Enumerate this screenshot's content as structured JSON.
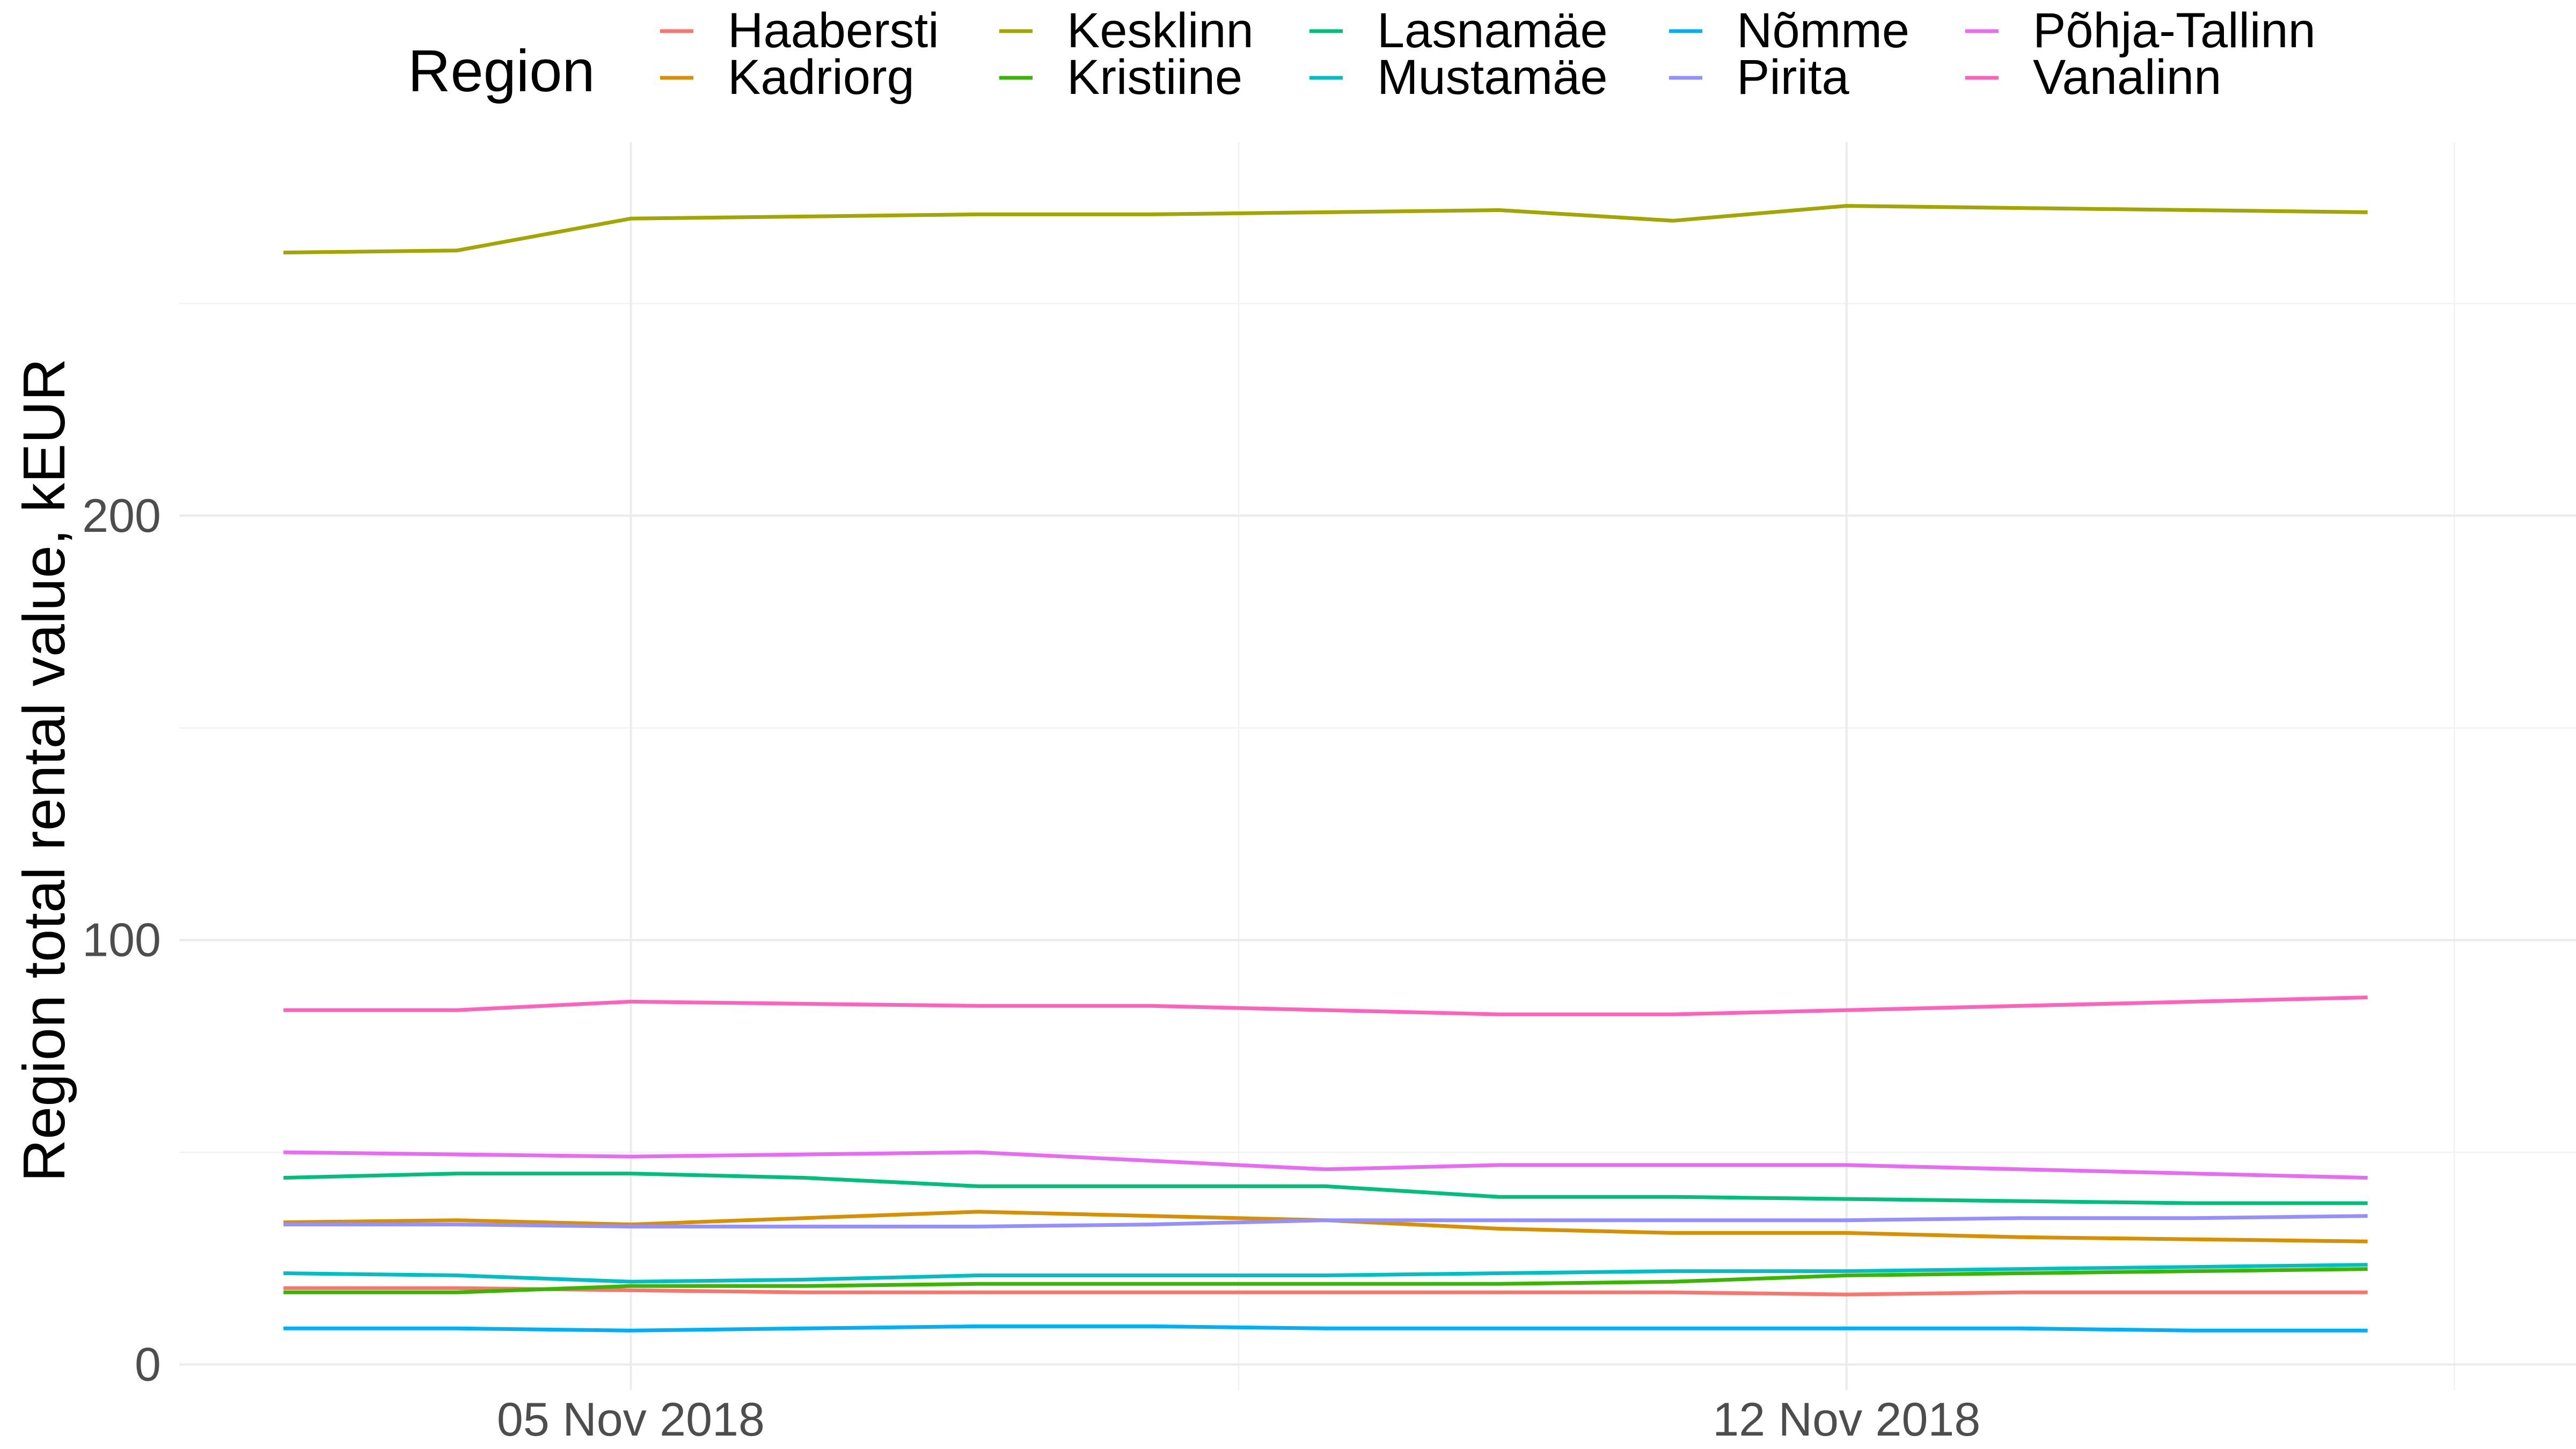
{
  "chart_data": {
    "type": "line",
    "title": "",
    "xlabel": "",
    "ylabel": "Region total rental value, kEUR",
    "x": [
      "2018-11-03",
      "2018-11-04",
      "2018-11-05",
      "2018-11-06",
      "2018-11-07",
      "2018-11-08",
      "2018-11-09",
      "2018-11-10",
      "2018-11-11",
      "2018-11-12",
      "2018-11-13",
      "2018-11-14",
      "2018-11-15"
    ],
    "x_tick_labels": [
      {
        "date": "2018-11-05",
        "label": "05 Nov 2018"
      },
      {
        "date": "2018-11-12",
        "label": "12 Nov 2018"
      }
    ],
    "y_ticks": [
      0,
      100,
      200
    ],
    "y_tick_labels": [
      "0",
      "100",
      "200"
    ],
    "ylim": [
      -6,
      288
    ],
    "grid": true,
    "legend": {
      "title": "Region",
      "position": "top"
    },
    "series": [
      {
        "name": "Haabersti",
        "color": "#F8766D",
        "values": [
          18,
          18,
          17.5,
          17,
          17,
          17,
          17,
          17,
          17,
          16.5,
          17,
          17,
          17
        ]
      },
      {
        "name": "Kadriorg",
        "color": "#D89000",
        "values": [
          33.5,
          34,
          33,
          34.5,
          36,
          35,
          34,
          32,
          31,
          31,
          30,
          29.5,
          29
        ]
      },
      {
        "name": "Kesklinn",
        "color": "#A3A500",
        "values": [
          262,
          262.5,
          270,
          270.5,
          271,
          271,
          271.5,
          272,
          269.5,
          273,
          272.5,
          272,
          271.5
        ]
      },
      {
        "name": "Kristiine",
        "color": "#39B600",
        "values": [
          17,
          17,
          18.5,
          18.5,
          19,
          19,
          19,
          19,
          19.5,
          21,
          21.5,
          22,
          22.5
        ]
      },
      {
        "name": "Lasnamäe",
        "color": "#00BF7D",
        "values": [
          44,
          45,
          45,
          44,
          42,
          42,
          42,
          39.5,
          39.5,
          39,
          38.5,
          38,
          38
        ]
      },
      {
        "name": "Mustamäe",
        "color": "#00BFC4",
        "values": [
          21.5,
          21,
          19.5,
          20,
          21,
          21,
          21,
          21.5,
          22,
          22,
          22.5,
          23,
          23.5
        ]
      },
      {
        "name": "Nõmme",
        "color": "#00B0F6",
        "values": [
          8.5,
          8.5,
          8,
          8.5,
          9,
          9,
          8.5,
          8.5,
          8.5,
          8.5,
          8.5,
          8,
          8
        ]
      },
      {
        "name": "Pirita",
        "color": "#9590FF",
        "values": [
          33,
          33,
          32.5,
          32.5,
          32.5,
          33,
          34,
          34,
          34,
          34,
          34.5,
          34.5,
          35
        ]
      },
      {
        "name": "Põhja-Tallinn",
        "color": "#E76BF3",
        "values": [
          50,
          49.5,
          49,
          49.5,
          50,
          48,
          46,
          47,
          47,
          47,
          46,
          45,
          44
        ]
      },
      {
        "name": "Vanalinn",
        "color": "#FF62BC",
        "values": [
          83.5,
          83.5,
          85.5,
          85,
          84.5,
          84.5,
          83.5,
          82.5,
          82.5,
          83.5,
          84.5,
          85.5,
          86.5
        ]
      }
    ]
  }
}
